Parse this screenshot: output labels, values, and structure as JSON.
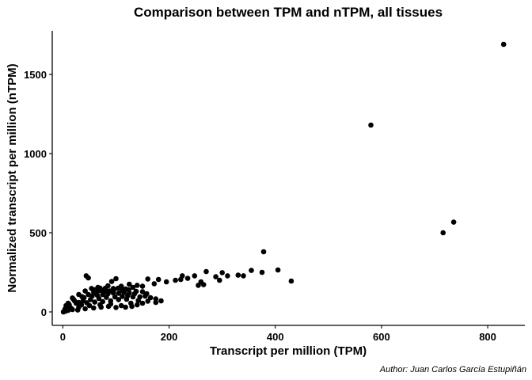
{
  "chart_data": {
    "type": "scatter",
    "title": "Comparison between TPM and nTPM, all tissues",
    "xlabel": "Transcript per million (TPM)",
    "ylabel": "Normalized transcript per million (nTPM)",
    "caption": "Author: Juan Carlos García Estupiñán",
    "xlim": [
      -20,
      870
    ],
    "ylim": [
      -85,
      1775
    ],
    "x_ticks": [
      0,
      200,
      400,
      600,
      800
    ],
    "y_ticks": [
      0,
      500,
      1000,
      1500
    ],
    "x_tick_labels": [
      "0",
      "200",
      "400",
      "600",
      "800"
    ],
    "y_tick_labels": [
      "0",
      "500",
      "1000",
      "1500"
    ],
    "grid": false,
    "legend": "none",
    "point_color": "#000000",
    "points": [
      [
        830,
        1690
      ],
      [
        580,
        1180
      ],
      [
        736,
        567
      ],
      [
        716,
        500
      ],
      [
        378,
        380
      ],
      [
        405,
        265
      ],
      [
        430,
        195
      ],
      [
        375,
        250
      ],
      [
        355,
        262
      ],
      [
        340,
        228
      ],
      [
        330,
        232
      ],
      [
        300,
        248
      ],
      [
        310,
        228
      ],
      [
        295,
        200
      ],
      [
        288,
        222
      ],
      [
        270,
        255
      ],
      [
        260,
        190
      ],
      [
        248,
        228
      ],
      [
        255,
        168
      ],
      [
        265,
        172
      ],
      [
        235,
        212
      ],
      [
        225,
        228
      ],
      [
        222,
        205
      ],
      [
        212,
        200
      ],
      [
        195,
        190
      ],
      [
        180,
        205
      ],
      [
        172,
        178
      ],
      [
        160,
        208
      ],
      [
        150,
        162
      ],
      [
        140,
        168
      ],
      [
        132,
        155
      ],
      [
        125,
        175
      ],
      [
        118,
        145
      ],
      [
        110,
        162
      ],
      [
        100,
        210
      ],
      [
        95,
        148
      ],
      [
        92,
        192
      ],
      [
        85,
        165
      ],
      [
        78,
        140
      ],
      [
        70,
        150
      ],
      [
        60,
        140
      ],
      [
        48,
        215
      ],
      [
        44,
        228
      ],
      [
        20,
        80
      ],
      [
        30,
        60
      ],
      [
        40,
        90
      ],
      [
        55,
        100
      ],
      [
        65,
        105
      ],
      [
        75,
        110
      ],
      [
        85,
        115
      ],
      [
        95,
        120
      ],
      [
        105,
        118
      ],
      [
        115,
        122
      ],
      [
        125,
        120
      ],
      [
        135,
        115
      ],
      [
        145,
        95
      ],
      [
        155,
        100
      ],
      [
        165,
        90
      ],
      [
        175,
        82
      ],
      [
        185,
        70
      ],
      [
        175,
        60
      ],
      [
        160,
        68
      ],
      [
        142,
        72
      ],
      [
        128,
        55
      ],
      [
        110,
        40
      ],
      [
        90,
        50
      ],
      [
        70,
        45
      ],
      [
        50,
        40
      ],
      [
        30,
        30
      ],
      [
        15,
        25
      ],
      [
        10,
        10
      ],
      [
        5,
        5
      ],
      [
        2,
        2
      ],
      [
        1,
        0
      ],
      [
        12,
        45
      ],
      [
        25,
        55
      ],
      [
        38,
        70
      ],
      [
        52,
        78
      ],
      [
        68,
        85
      ],
      [
        82,
        92
      ],
      [
        98,
        95
      ],
      [
        112,
        98
      ],
      [
        122,
        102
      ],
      [
        132,
        95
      ],
      [
        88,
        132
      ],
      [
        76,
        125
      ],
      [
        62,
        118
      ],
      [
        48,
        110
      ],
      [
        36,
        96
      ],
      [
        22,
        70
      ],
      [
        8,
        30
      ],
      [
        18,
        15
      ],
      [
        28,
        12
      ],
      [
        42,
        20
      ],
      [
        58,
        25
      ],
      [
        72,
        30
      ],
      [
        86,
        35
      ],
      [
        100,
        28
      ],
      [
        118,
        30
      ],
      [
        130,
        35
      ],
      [
        140,
        45
      ],
      [
        150,
        55
      ],
      [
        120,
        80
      ],
      [
        105,
        78
      ],
      [
        90,
        70
      ],
      [
        75,
        65
      ],
      [
        60,
        62
      ],
      [
        45,
        58
      ],
      [
        35,
        45
      ],
      [
        96,
        140
      ],
      [
        84,
        128
      ],
      [
        68,
        135
      ],
      [
        58,
        125
      ],
      [
        112,
        135
      ],
      [
        124,
        140
      ],
      [
        138,
        130
      ],
      [
        150,
        128
      ],
      [
        158,
        115
      ],
      [
        104,
        150
      ],
      [
        80,
        150
      ],
      [
        66,
        155
      ],
      [
        54,
        148
      ],
      [
        42,
        132
      ],
      [
        30,
        110
      ],
      [
        18,
        88
      ],
      [
        10,
        55
      ],
      [
        6,
        40
      ],
      [
        4,
        18
      ],
      [
        3,
        8
      ]
    ]
  }
}
